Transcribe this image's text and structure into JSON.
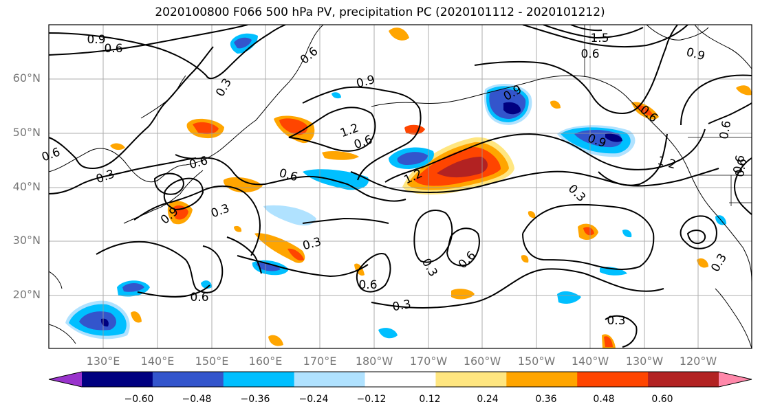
{
  "title": "2020100800 F066 500 hPa PV, precipitation PC (2020101112 - 2020101212)",
  "lat_ticks": [
    "60°N",
    "50°N",
    "40°N",
    "30°N",
    "20°N"
  ],
  "lon_ticks": [
    "130°E",
    "140°E",
    "150°E",
    "160°E",
    "170°E",
    "180°W",
    "170°W",
    "160°W",
    "150°W",
    "140°W",
    "130°W",
    "120°W"
  ],
  "colorbar": {
    "colors": [
      "#9933cc",
      "#000080",
      "#3355cc",
      "#00bfff",
      "#b0e2ff",
      "#ffffff",
      "#ffe680",
      "#ffa500",
      "#ff4500",
      "#b22222",
      "#ff88aa"
    ],
    "labels": [
      "−0.60",
      "−0.48",
      "−0.36",
      "−0.24",
      "−0.12",
      "0.12",
      "0.24",
      "0.36",
      "0.48",
      "0.60"
    ]
  },
  "contour_labels": [
    "0.9",
    "0.6",
    "0.3",
    "0.6",
    "0.9",
    "1.2",
    "0.6",
    "1.2",
    "0.6",
    "0.6",
    "0.3",
    "0.9",
    "0.3",
    "0.3",
    "0.6",
    "0.6",
    "0.3",
    "0.3",
    "0.6",
    "0.3",
    "0.6",
    "0.9",
    "1.2",
    "0.6",
    "0.6",
    "0.9",
    "1.5",
    "0.6",
    "0.9",
    "0.6",
    "0.3",
    "0.3",
    "0.6"
  ]
}
